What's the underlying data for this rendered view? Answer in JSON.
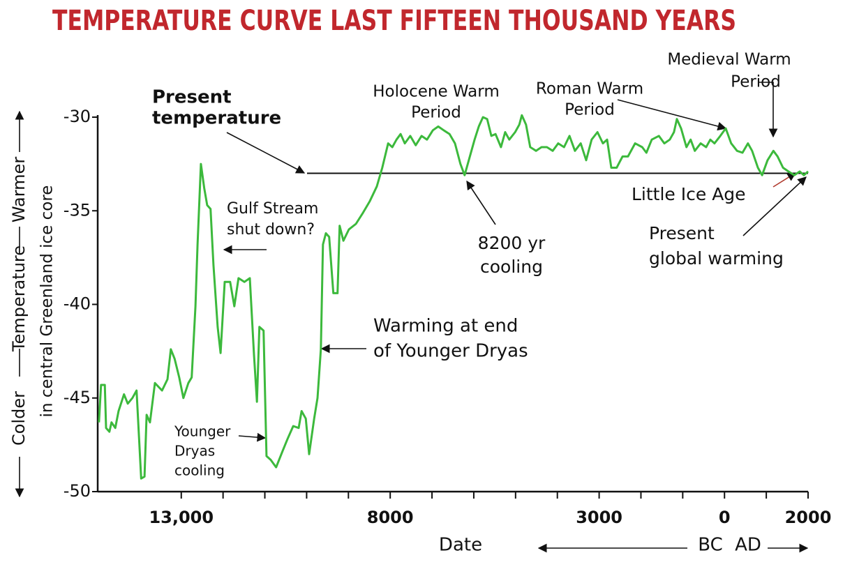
{
  "chart_data": {
    "type": "line",
    "title": "TEMPERATURE CURVE LAST FIFTEEN THOUSAND YEARS",
    "title_color": "#c1272d",
    "color": "#3cb93c",
    "x_label": "Date",
    "x_era_labels": [
      "BC",
      "AD"
    ],
    "y_label_parts": [
      "Colder",
      "Temperature",
      "Warmer"
    ],
    "y_label_sub": "in central Greenland ice core",
    "xlim": [
      -15000,
      2000
    ],
    "ylim": [
      -50,
      -30
    ],
    "xticks": [
      {
        "value": -13000,
        "label": "13,000"
      },
      {
        "value": -8000,
        "label": "8000"
      },
      {
        "value": -3000,
        "label": "3000"
      },
      0,
      2000
    ],
    "xminorticks": [
      -12000,
      -11000,
      -10000,
      -9000,
      -7000,
      -6000,
      -5000,
      -4000,
      -2000,
      -1000,
      1000
    ],
    "yticks": [
      -30,
      -35,
      -40,
      -45,
      -50
    ],
    "reference_line": {
      "value": -33
    },
    "annotations": [
      {
        "lines": [
          "Present",
          "temperature"
        ]
      },
      {
        "lines": [
          "Holocene Warm",
          "Period"
        ]
      },
      {
        "lines": [
          "Roman Warm",
          "Period"
        ]
      },
      {
        "lines": [
          "Medieval Warm",
          "Period"
        ]
      },
      {
        "lines": [
          "Little Ice Age"
        ]
      },
      {
        "lines": [
          "Present",
          "global warming"
        ]
      },
      {
        "lines": [
          "8200 yr",
          "cooling"
        ]
      },
      {
        "lines": [
          "Gulf Stream",
          "shut down?"
        ]
      },
      {
        "lines": [
          "Warming at end",
          "of Younger Dryas"
        ]
      },
      {
        "lines": [
          "Younger",
          "Dryas",
          "cooling"
        ]
      }
    ],
    "x": [
      -14970,
      -14920,
      -14830,
      -14800,
      -14720,
      -14670,
      -14580,
      -14500,
      -14370,
      -14280,
      -14170,
      -14070,
      -13960,
      -13880,
      -13830,
      -13750,
      -13630,
      -13460,
      -13330,
      -13250,
      -13160,
      -13050,
      -12950,
      -12830,
      -12750,
      -12660,
      -12610,
      -12530,
      -12450,
      -12380,
      -12300,
      -12230,
      -12130,
      -12060,
      -11960,
      -11830,
      -11730,
      -11630,
      -11490,
      -11360,
      -11260,
      -11190,
      -11130,
      -11030,
      -10960,
      -10860,
      -10730,
      -10570,
      -10460,
      -10320,
      -10190,
      -10120,
      -10020,
      -9940,
      -9820,
      -9740,
      -9660,
      -9610,
      -9540,
      -9460,
      -9360,
      -9260,
      -9210,
      -9120,
      -8990,
      -8820,
      -8650,
      -8490,
      -8320,
      -8190,
      -8050,
      -7950,
      -7850,
      -7750,
      -7650,
      -7520,
      -7390,
      -7250,
      -7120,
      -6980,
      -6850,
      -6720,
      -6580,
      -6450,
      -6320,
      -6220,
      -6120,
      -5980,
      -5880,
      -5780,
      -5680,
      -5580,
      -5480,
      -5350,
      -5250,
      -5150,
      -5010,
      -4910,
      -4850,
      -4750,
      -4650,
      -4510,
      -4380,
      -4250,
      -4110,
      -3980,
      -3840,
      -3710,
      -3580,
      -3440,
      -3310,
      -3180,
      -3040,
      -2910,
      -2810,
      -2710,
      -2580,
      -2440,
      -2310,
      -2140,
      -1970,
      -1870,
      -1740,
      -1570,
      -1440,
      -1310,
      -1210,
      -1140,
      -1040,
      -910,
      -810,
      -710,
      -570,
      -440,
      -340,
      -240,
      -100,
      30,
      160,
      300,
      430,
      560,
      660,
      800,
      900,
      1030,
      1170,
      1270,
      1400,
      1530,
      1670,
      1800,
      1900,
      2000
    ],
    "values": [
      -46.3,
      -44.3,
      -44.3,
      -46.6,
      -46.8,
      -46.3,
      -46.6,
      -45.7,
      -44.8,
      -45.3,
      -45.0,
      -44.6,
      -49.3,
      -49.2,
      -45.9,
      -46.3,
      -44.2,
      -44.6,
      -44.0,
      -42.4,
      -42.9,
      -43.9,
      -45.0,
      -44.2,
      -43.9,
      -40.1,
      -36.8,
      -32.5,
      -33.8,
      -34.7,
      -34.9,
      -37.9,
      -41.2,
      -42.6,
      -38.8,
      -38.8,
      -40.1,
      -38.6,
      -38.8,
      -38.6,
      -42.7,
      -45.2,
      -41.2,
      -41.4,
      -48.1,
      -48.3,
      -48.7,
      -47.8,
      -47.2,
      -46.5,
      -46.6,
      -45.7,
      -46.1,
      -48.0,
      -46.1,
      -45.0,
      -42.4,
      -36.8,
      -36.2,
      -36.4,
      -39.4,
      -39.4,
      -35.8,
      -36.6,
      -36.0,
      -35.7,
      -35.1,
      -34.5,
      -33.7,
      -32.7,
      -31.4,
      -31.6,
      -31.2,
      -30.9,
      -31.4,
      -31.0,
      -31.5,
      -31.0,
      -31.2,
      -30.7,
      -30.5,
      -30.7,
      -30.9,
      -31.4,
      -32.5,
      -33.1,
      -32.3,
      -31.2,
      -30.5,
      -30.0,
      -30.1,
      -31.0,
      -30.9,
      -31.6,
      -30.8,
      -31.2,
      -30.8,
      -30.4,
      -29.9,
      -30.4,
      -31.6,
      -31.8,
      -31.6,
      -31.6,
      -31.8,
      -31.4,
      -31.6,
      -31.0,
      -31.8,
      -31.4,
      -32.3,
      -31.2,
      -30.8,
      -31.4,
      -31.2,
      -32.7,
      -32.7,
      -32.1,
      -32.1,
      -31.4,
      -31.6,
      -31.9,
      -31.2,
      -31.0,
      -31.4,
      -31.2,
      -30.8,
      -30.1,
      -30.6,
      -31.6,
      -31.2,
      -31.8,
      -31.4,
      -31.6,
      -31.2,
      -31.4,
      -31.0,
      -30.6,
      -31.4,
      -31.8,
      -31.9,
      -31.4,
      -31.8,
      -32.7,
      -33.1,
      -32.3,
      -31.8,
      -32.1,
      -32.7,
      -32.9,
      -33.1,
      -32.9,
      -33.1,
      -32.9
    ]
  }
}
